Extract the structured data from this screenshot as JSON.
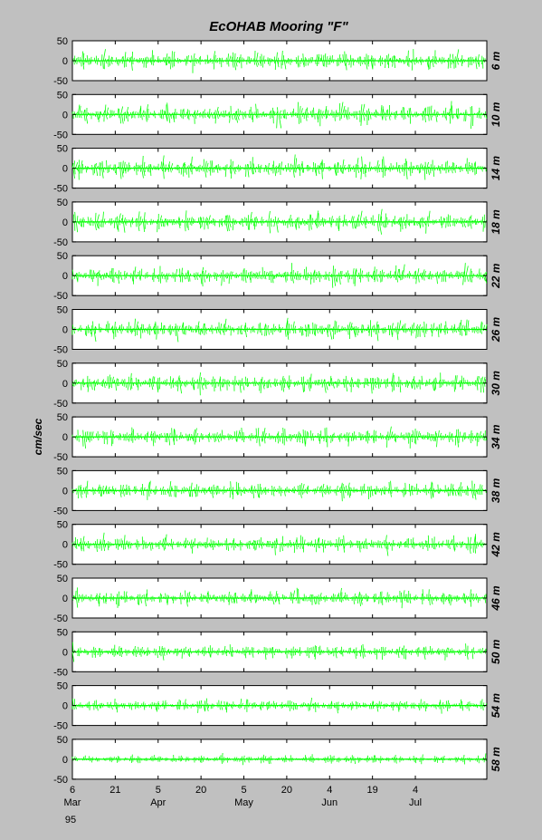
{
  "chart_data": {
    "type": "line",
    "title": "EcOHAB Mooring \"F\"",
    "ylabel": "cm/sec",
    "ylim": [
      -50,
      50
    ],
    "yticks": [
      "50",
      "0",
      "-50"
    ],
    "series_color": "#00ff00",
    "xlim": [
      "1995-03-06",
      "1995-07-29"
    ],
    "xticks": [
      {
        "date": "1995-03-06",
        "day": "6",
        "month": "Mar",
        "year": "95"
      },
      {
        "date": "1995-03-21",
        "day": "21",
        "month": "",
        "year": ""
      },
      {
        "date": "1995-04-05",
        "day": "5",
        "month": "Apr",
        "year": ""
      },
      {
        "date": "1995-04-20",
        "day": "20",
        "month": "",
        "year": ""
      },
      {
        "date": "1995-05-05",
        "day": "5",
        "month": "May",
        "year": ""
      },
      {
        "date": "1995-05-20",
        "day": "20",
        "month": "",
        "year": ""
      },
      {
        "date": "1995-06-04",
        "day": "4",
        "month": "Jun",
        "year": ""
      },
      {
        "date": "1995-06-19",
        "day": "19",
        "month": "",
        "year": ""
      },
      {
        "date": "1995-07-04",
        "day": "4",
        "month": "Jul",
        "year": ""
      }
    ],
    "panels": [
      {
        "depth": "6 m",
        "amplitude": 30
      },
      {
        "depth": "10 m",
        "amplitude": 32
      },
      {
        "depth": "14 m",
        "amplitude": 32
      },
      {
        "depth": "18 m",
        "amplitude": 31
      },
      {
        "depth": "22 m",
        "amplitude": 30
      },
      {
        "depth": "26 m",
        "amplitude": 30
      },
      {
        "depth": "30 m",
        "amplitude": 30
      },
      {
        "depth": "34 m",
        "amplitude": 29
      },
      {
        "depth": "38 m",
        "amplitude": 27
      },
      {
        "depth": "42 m",
        "amplitude": 27
      },
      {
        "depth": "46 m",
        "amplitude": 26
      },
      {
        "depth": "50 m",
        "amplitude": 23
      },
      {
        "depth": "54 m",
        "amplitude": 20
      },
      {
        "depth": "58 m",
        "amplitude": 14
      }
    ]
  }
}
